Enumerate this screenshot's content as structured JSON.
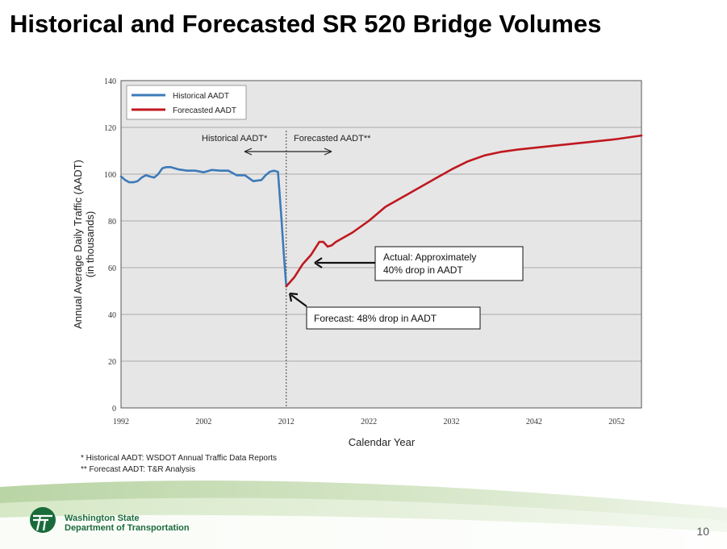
{
  "slide": {
    "title": "Historical and Forecasted SR 520 Bridge Volumes",
    "page_number": "10",
    "org_line1": "Washington State",
    "org_line2": "Department of Transportation",
    "footnote1": "*  Historical AADT: WSDOT Annual Traffic Data Reports",
    "footnote2": "** Forecast AADT: T&R Analysis"
  },
  "chart_data": {
    "type": "line",
    "xlabel": "Calendar Year",
    "ylabel_line1": "Annual Average Daily Traffic (AADT)",
    "ylabel_line2": "(in thousands)",
    "xlim": [
      1992,
      2055
    ],
    "ylim": [
      0,
      140
    ],
    "x_ticks": [
      1992,
      2002,
      2012,
      2022,
      2032,
      2042,
      2052
    ],
    "y_ticks": [
      0,
      20,
      40,
      60,
      80,
      100,
      120,
      140
    ],
    "grid": true,
    "legend_position": "top-left",
    "series": [
      {
        "name": "Historical AADT",
        "color": "#3d7ab8",
        "points": [
          [
            1992,
            99
          ],
          [
            1992.5,
            97.5
          ],
          [
            1993,
            96.5
          ],
          [
            1993.5,
            96.5
          ],
          [
            1994,
            97
          ],
          [
            1994.5,
            98.5
          ],
          [
            1995,
            99.5
          ],
          [
            1995.5,
            99
          ],
          [
            1996,
            98.5
          ],
          [
            1996.5,
            100
          ],
          [
            1997,
            102.5
          ],
          [
            1997.5,
            103
          ],
          [
            1998,
            103
          ],
          [
            1998.5,
            102.5
          ],
          [
            1999,
            102
          ],
          [
            2000,
            101.5
          ],
          [
            2001,
            101.5
          ],
          [
            2002,
            100.8
          ],
          [
            2003,
            101.8
          ],
          [
            2004,
            101.5
          ],
          [
            2005,
            101.5
          ],
          [
            2006,
            99.5
          ],
          [
            2007,
            99.5
          ],
          [
            2008,
            97
          ],
          [
            2009,
            97.5
          ],
          [
            2009.5,
            99.5
          ],
          [
            2010,
            101
          ],
          [
            2010.5,
            101.5
          ],
          [
            2011,
            101
          ],
          [
            2011.4,
            82
          ],
          [
            2011.7,
            66
          ],
          [
            2012,
            52
          ]
        ]
      },
      {
        "name": "Forecasted AADT",
        "color": "#c0181f",
        "points": [
          [
            2012,
            52
          ],
          [
            2013,
            56
          ],
          [
            2014,
            61.5
          ],
          [
            2015,
            65.5
          ],
          [
            2016,
            71
          ],
          [
            2016.5,
            71
          ],
          [
            2017,
            69
          ],
          [
            2017.5,
            69.5
          ],
          [
            2018,
            71
          ],
          [
            2020,
            75
          ],
          [
            2022,
            80
          ],
          [
            2024,
            86
          ],
          [
            2026,
            90
          ],
          [
            2028,
            94
          ],
          [
            2030,
            98
          ],
          [
            2032,
            102
          ],
          [
            2034,
            105.5
          ],
          [
            2036,
            108
          ],
          [
            2038,
            109.5
          ],
          [
            2040,
            110.5
          ],
          [
            2044,
            112
          ],
          [
            2048,
            113.5
          ],
          [
            2052,
            115
          ],
          [
            2055,
            116.5
          ]
        ]
      }
    ],
    "divider_year": 2012,
    "period_labels": {
      "historical": "Historical AADT*",
      "forecast": "Forecasted AADT**"
    },
    "annotations": [
      {
        "text_line1": "Actual:  Approximately",
        "text_line2": "40% drop in AADT",
        "target": [
          2015.5,
          62
        ]
      },
      {
        "text_line1": "Forecast: 48% drop in AADT",
        "text_line2": "",
        "target": [
          2012.1,
          52.5
        ]
      }
    ]
  }
}
